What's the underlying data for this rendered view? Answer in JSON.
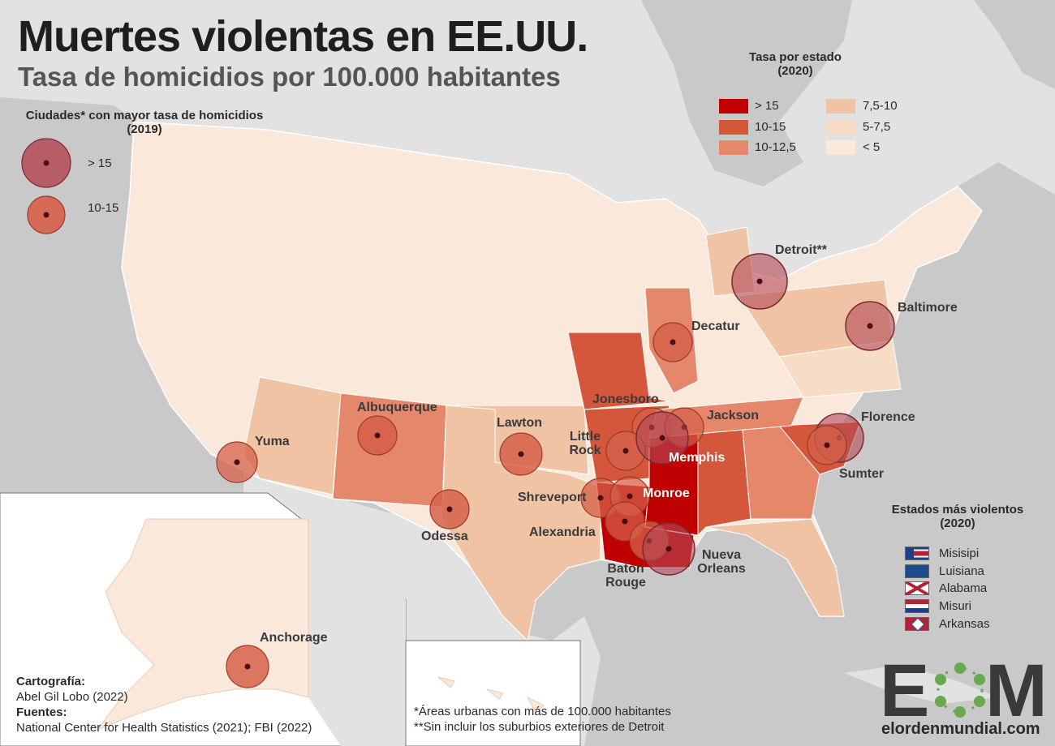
{
  "title": "Muertes violentas en EE.UU.",
  "subtitle": "Tasa de homicidios por 100.000 habitantes",
  "city_legend": {
    "title": "Ciudades* con mayor tasa de homicidios (2019)",
    "items": [
      {
        "label": "> 15",
        "color": "#b34a57"
      },
      {
        "label": "10-15",
        "color": "#d6614a"
      }
    ]
  },
  "state_legend": {
    "title": "Tasa por estado (2020)",
    "items": [
      {
        "label": "> 15",
        "color": "#c00000"
      },
      {
        "label": "10-15",
        "color": "#d5573b"
      },
      {
        "label": "10-12,5",
        "color": "#e4876a"
      },
      {
        "label": "7,5-10",
        "color": "#f0c3a5"
      },
      {
        "label": "5-7,5",
        "color": "#f7dcc6"
      },
      {
        "label": "< 5",
        "color": "#fae8da"
      }
    ]
  },
  "cities": [
    {
      "name": "Detroit**",
      "category": "> 15"
    },
    {
      "name": "Baltimore",
      "category": "> 15"
    },
    {
      "name": "Decatur",
      "category": "10-15"
    },
    {
      "name": "Jonesboro",
      "category": "10-15"
    },
    {
      "name": "Jackson",
      "category": "10-15"
    },
    {
      "name": "Little Rock",
      "category": "10-15"
    },
    {
      "name": "Memphis",
      "category": "> 15"
    },
    {
      "name": "Florence",
      "category": "> 15"
    },
    {
      "name": "Sumter",
      "category": "10-15"
    },
    {
      "name": "Albuquerque",
      "category": "10-15"
    },
    {
      "name": "Lawton",
      "category": "10-15"
    },
    {
      "name": "Yuma",
      "category": "10-15"
    },
    {
      "name": "Odessa",
      "category": "10-15"
    },
    {
      "name": "Shreveport",
      "category": "10-15"
    },
    {
      "name": "Monroe",
      "category": "10-15"
    },
    {
      "name": "Alexandria",
      "category": "10-15"
    },
    {
      "name": "Baton Rouge",
      "category": "10-15"
    },
    {
      "name": "Nueva Orleans",
      "category": "> 15"
    },
    {
      "name": "Anchorage",
      "category": "10-15"
    }
  ],
  "violent_states": {
    "title": "Estados más violentos (2020)",
    "items": [
      "Misisipi",
      "Luisiana",
      "Alabama",
      "Misuri",
      "Arkansas"
    ]
  },
  "credits": {
    "cartography_label": "Cartografía:",
    "cartography_value": "Abel Gil Lobo (2022)",
    "sources_label": "Fuentes:",
    "sources_value": "National Center for Health Statistics (2021); FBI (2022)"
  },
  "notes": [
    "*Áreas urbanas con más de 100.000 habitantes",
    "**Sin incluir los suburbios exteriores de Detroit"
  ],
  "logo": {
    "text": "EOM",
    "site": "elordenmundial.com"
  }
}
